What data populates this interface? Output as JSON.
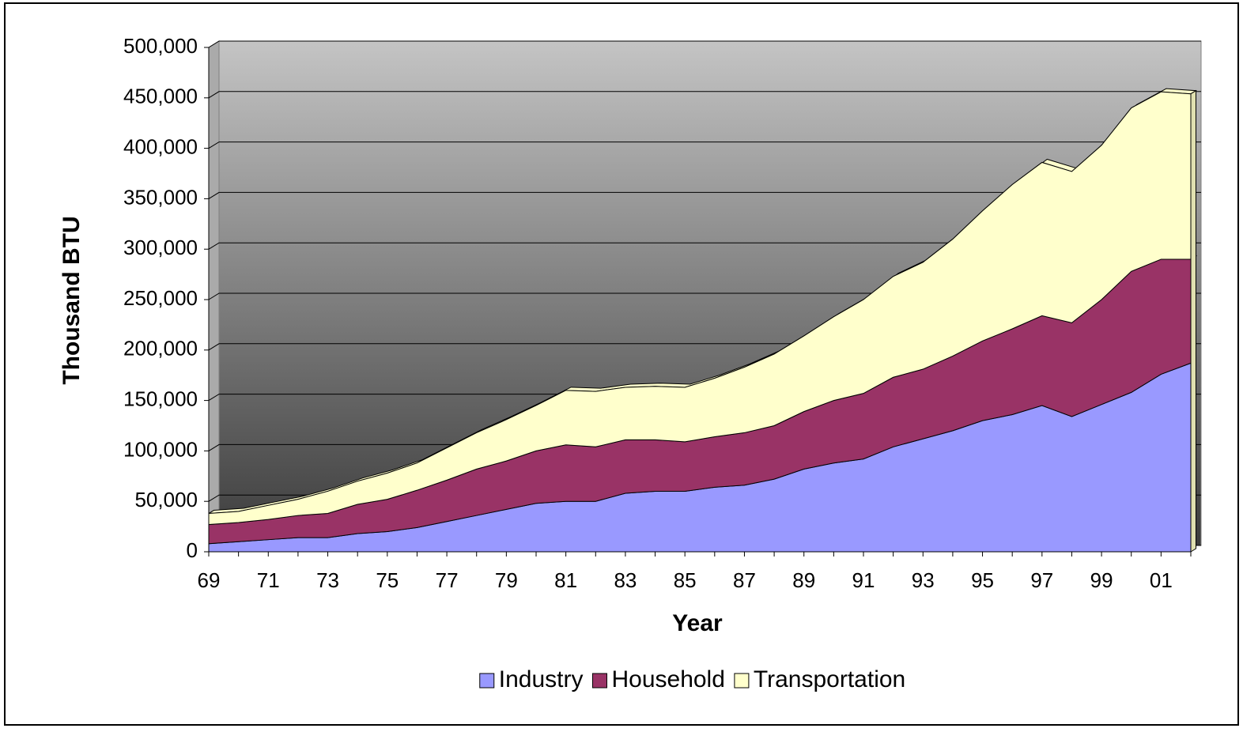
{
  "chart_data": {
    "type": "stacked-area",
    "x_label": "Year",
    "y_label": "Thousand BTU",
    "categories": [
      "69",
      null,
      "71",
      null,
      "73",
      null,
      "75",
      null,
      "77",
      null,
      "79",
      null,
      "81",
      null,
      "83",
      null,
      "85",
      null,
      "87",
      null,
      "89",
      null,
      "91",
      null,
      "93",
      null,
      "95",
      null,
      "97",
      null,
      "99",
      null,
      "01",
      null
    ],
    "series": [
      {
        "name": "Industry",
        "color": "#9999ff",
        "values": [
          8000,
          10000,
          12000,
          14000,
          14000,
          18000,
          20000,
          24000,
          30000,
          36000,
          42000,
          48000,
          50000,
          50000,
          58000,
          60000,
          60000,
          64000,
          66000,
          72000,
          82000,
          88000,
          92000,
          104000,
          112000,
          120000,
          130000,
          136000,
          145000,
          134000,
          146000,
          158000,
          176000,
          187000
        ]
      },
      {
        "name": "Household",
        "color": "#993366",
        "values": [
          19000,
          19000,
          20000,
          22000,
          24000,
          29000,
          32000,
          37000,
          41000,
          46000,
          48000,
          52000,
          56000,
          54000,
          53000,
          51000,
          49000,
          50000,
          52000,
          53000,
          57000,
          62000,
          65000,
          69000,
          69000,
          74000,
          79000,
          85000,
          89000,
          93000,
          104000,
          120000,
          114000,
          103000
        ]
      },
      {
        "name": "Transportation",
        "color": "#ffffcc",
        "values": [
          11000,
          11000,
          14000,
          16000,
          22000,
          23000,
          26000,
          27000,
          32000,
          36000,
          41000,
          45000,
          54000,
          55000,
          52000,
          53000,
          54000,
          58000,
          65000,
          71000,
          75000,
          83000,
          93000,
          100000,
          106000,
          116000,
          129000,
          143000,
          152000,
          150000,
          153000,
          162000,
          166000,
          164000
        ]
      }
    ],
    "ylim": [
      0,
      500000
    ],
    "yticks": [
      0,
      {
        "value": 50000,
        "label": "50,000"
      },
      {
        "value": 100000,
        "label": "100,000"
      },
      {
        "value": 150000,
        "label": "150,000"
      },
      {
        "value": 200000,
        "label": "200,000"
      },
      {
        "value": 250000,
        "label": "250,000"
      },
      {
        "value": 300000,
        "label": "300,000"
      },
      {
        "value": 350000,
        "label": "350,000"
      },
      {
        "value": 400000,
        "label": "400,000"
      },
      {
        "value": 450000,
        "label": "450,000"
      },
      {
        "value": 500000,
        "label": "500,000"
      }
    ],
    "grid": true,
    "legend": "bottom"
  }
}
